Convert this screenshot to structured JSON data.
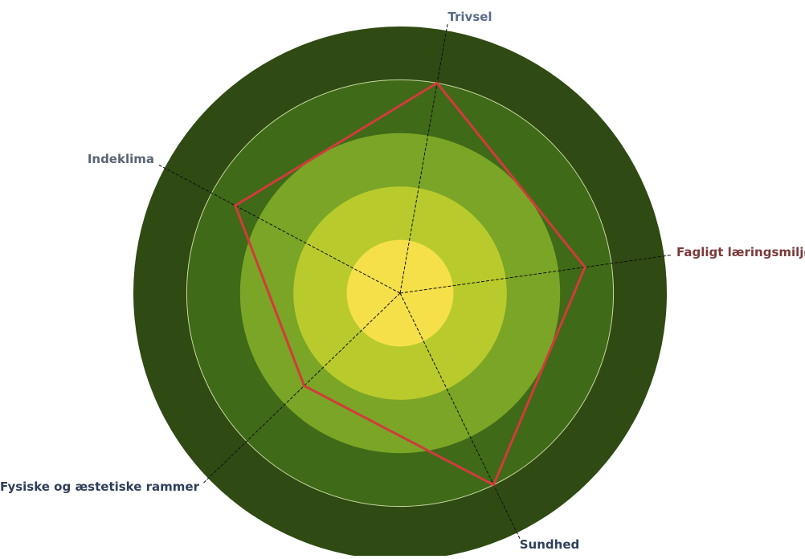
{
  "chart_data": {
    "type": "radar",
    "title": "",
    "axes": [
      "Trivsel",
      "Fagligt læringsmiljø",
      "Sundhed",
      "Fysiske og æstetiske rammer",
      "Indeklima"
    ],
    "rmax": 5,
    "series": [
      {
        "values": [
          4.0,
          3.5,
          4.0,
          2.5,
          3.5
        ],
        "color": "#d23b3b"
      }
    ],
    "grid": true,
    "ring_colors": [
      "#2f4a13",
      "#3f6a17",
      "#7aa526",
      "#b9cb2c",
      "#f5e04a"
    ],
    "axis_label_colors": [
      "#5a6b89",
      "#7a3a3a",
      "#2f3f5a",
      "#2f3f5a",
      "#5a6474"
    ]
  }
}
